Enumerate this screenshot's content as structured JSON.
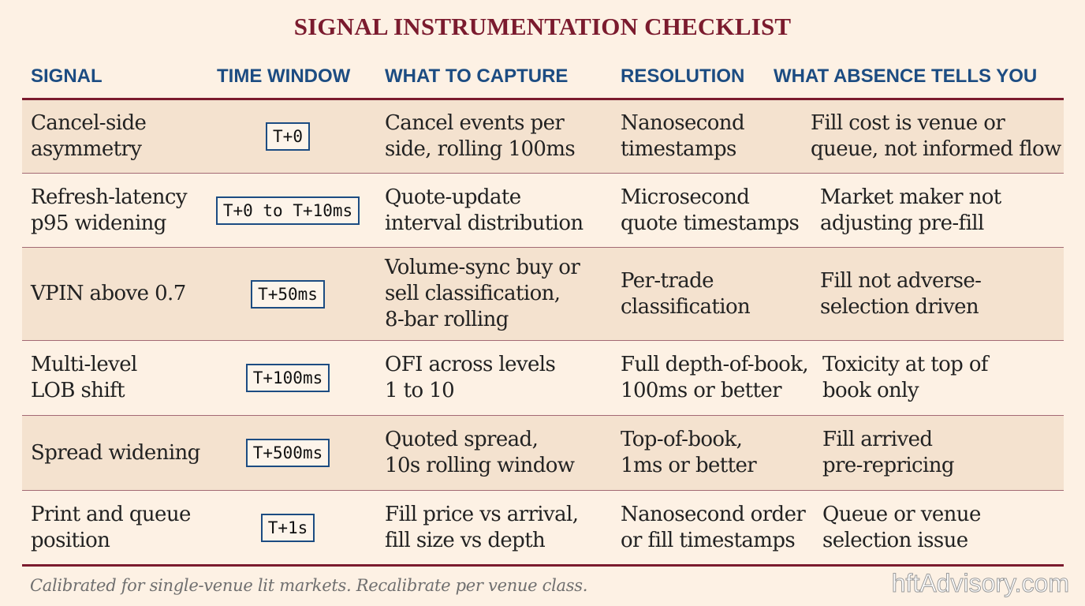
{
  "title": "SIGNAL INSTRUMENTATION CHECKLIST",
  "columns": [
    "SIGNAL",
    "TIME WINDOW",
    "WHAT TO CAPTURE",
    "RESOLUTION",
    "WHAT ABSENCE TELLS YOU"
  ],
  "rows": [
    {
      "signal": "Cancel-side\nasymmetry",
      "time_window": "T+0",
      "capture": "Cancel events per\nside, rolling 100ms",
      "resolution": "Nanosecond\ntimestamps",
      "absence": "Fill cost is venue or\nqueue, not informed flow"
    },
    {
      "signal": "Refresh-latency\np95 widening",
      "time_window": "T+0 to T+10ms",
      "capture": "Quote-update\ninterval distribution",
      "resolution": "Microsecond\nquote timestamps",
      "absence": "Market maker not\nadjusting pre-fill"
    },
    {
      "signal": "VPIN above 0.7",
      "time_window": "T+50ms",
      "capture": "Volume-sync buy or\nsell classification,\n8-bar rolling",
      "resolution": "Per-trade\nclassification",
      "absence": "Fill not adverse-\nselection driven"
    },
    {
      "signal": "Multi-level\nLOB shift",
      "time_window": "T+100ms",
      "capture": "OFI across levels\n1 to 10",
      "resolution": "Full depth-of-book,\n100ms or better",
      "absence": "Toxicity at top of\nbook only"
    },
    {
      "signal": "Spread widening",
      "time_window": "T+500ms",
      "capture": "Quoted spread,\n10s rolling window",
      "resolution": "Top-of-book,\n1ms or better",
      "absence": "Fill arrived\npre-repricing"
    },
    {
      "signal": "Print and queue\nposition",
      "time_window": "T+1s",
      "capture": "Fill price vs arrival,\nfill size vs depth",
      "resolution": "Nanosecond order\nor fill timestamps",
      "absence": "Queue or venue\nselection issue"
    }
  ],
  "footer": "Calibrated for single-venue lit markets. Recalibrate per venue class.",
  "watermark": "hftAdvisory.com",
  "colors": {
    "background": "#fdf1e4",
    "row_shade": "#f4e2cf",
    "accent_maroon": "#7b1b2e",
    "header_blue": "#1c4c82"
  }
}
